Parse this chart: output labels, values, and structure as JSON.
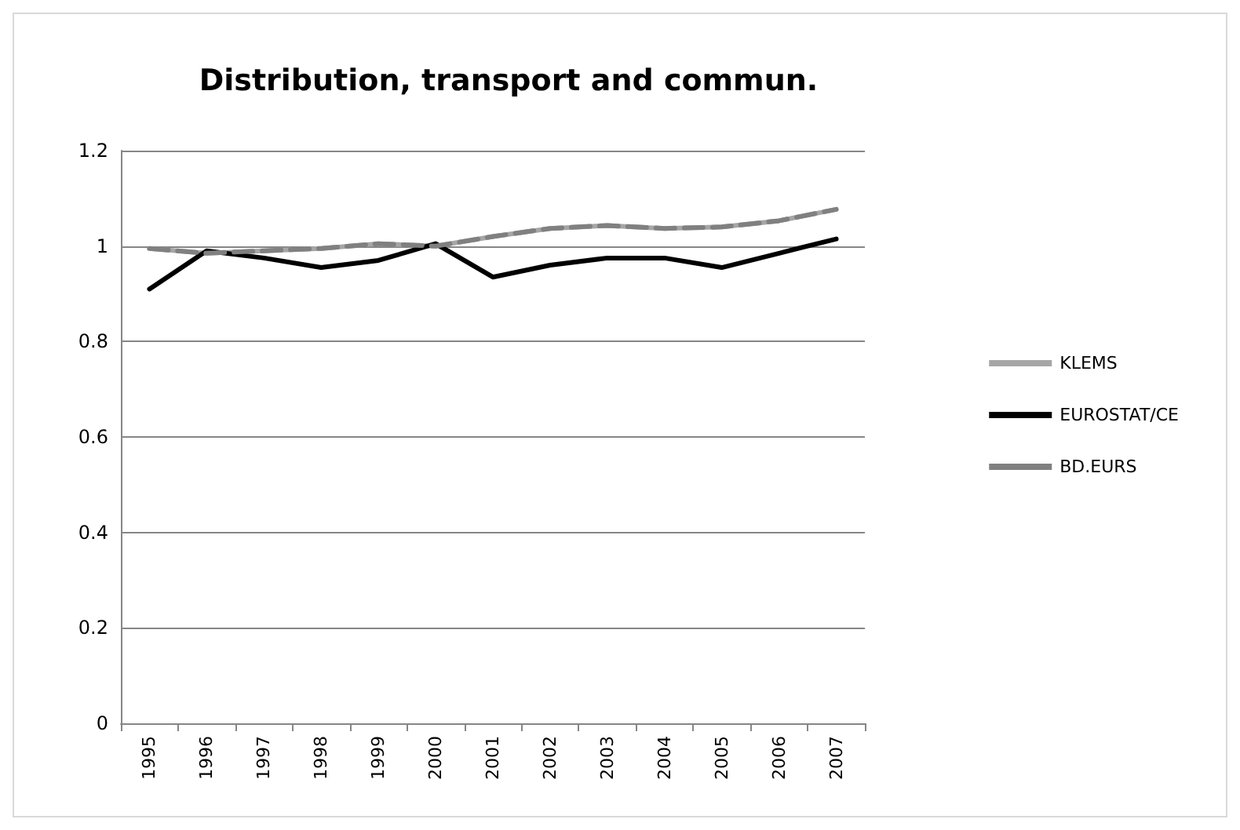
{
  "chart_data": {
    "type": "line",
    "title": "Distribution, transport and commun.",
    "categories": [
      "1995",
      "1996",
      "1997",
      "1998",
      "1999",
      "2000",
      "2001",
      "2002",
      "2003",
      "2004",
      "2005",
      "2006",
      "2007"
    ],
    "series": [
      {
        "name": "KLEMS",
        "color": "#a6a6a6",
        "values": [
          0.995,
          0.985,
          0.99,
          0.995,
          1.005,
          1.0,
          1.02,
          1.037,
          1.043,
          1.037,
          1.04,
          1.053,
          1.077
        ]
      },
      {
        "name": "EUROSTAT/CE",
        "color": "#000000",
        "values": [
          0.91,
          0.99,
          0.975,
          0.955,
          0.97,
          1.005,
          0.935,
          0.96,
          0.975,
          0.975,
          0.955,
          0.985,
          1.015
        ]
      },
      {
        "name": "BD.EURS",
        "color": "#808080",
        "line_style": "dashed",
        "values": [
          0.995,
          0.985,
          0.99,
          0.995,
          1.005,
          1.0,
          1.02,
          1.037,
          1.043,
          1.037,
          1.04,
          1.053,
          1.077
        ]
      }
    ],
    "ylim": [
      0,
      1.2
    ],
    "yticks": [
      0,
      0.2,
      0.4,
      0.6,
      0.8,
      1,
      1.2
    ],
    "grid": "y",
    "legend": "right",
    "marker": "none"
  }
}
